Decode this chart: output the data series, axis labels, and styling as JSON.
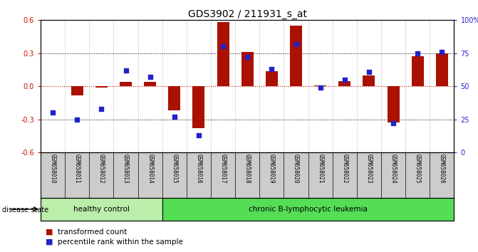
{
  "title": "GDS3902 / 211931_s_at",
  "samples": [
    "GSM658010",
    "GSM658011",
    "GSM658012",
    "GSM658013",
    "GSM658014",
    "GSM658015",
    "GSM658016",
    "GSM658017",
    "GSM658018",
    "GSM658019",
    "GSM658020",
    "GSM658021",
    "GSM658022",
    "GSM658023",
    "GSM658024",
    "GSM658025",
    "GSM658026"
  ],
  "transformed_count": [
    0.0,
    -0.08,
    -0.01,
    0.04,
    0.04,
    -0.22,
    -0.38,
    0.58,
    0.31,
    0.14,
    0.55,
    0.01,
    0.05,
    0.1,
    -0.33,
    0.27,
    0.3
  ],
  "percentile_rank": [
    30,
    25,
    33,
    62,
    57,
    27,
    13,
    80,
    72,
    63,
    82,
    49,
    55,
    61,
    22,
    75,
    76
  ],
  "bar_color": "#aa1100",
  "dot_color": "#2222cc",
  "ylim_left": [
    -0.6,
    0.6
  ],
  "ylim_right": [
    0,
    100
  ],
  "yticks_left": [
    -0.6,
    -0.3,
    0.0,
    0.3,
    0.6
  ],
  "yticks_right": [
    0,
    25,
    50,
    75,
    100
  ],
  "ytick_labels_right": [
    "0",
    "25",
    "50",
    "75",
    "100%"
  ],
  "dotted_lines": [
    -0.3,
    0.3
  ],
  "zero_line_y": 0.0,
  "group1_label": "healthy control",
  "group2_label": "chronic B-lymphocytic leukemia",
  "group1_count": 5,
  "group2_count": 12,
  "disease_state_label": "disease state",
  "legend1_label": "transformed count",
  "legend2_label": "percentile rank within the sample",
  "bg_color_group1": "#bbeeaa",
  "bg_color_group2": "#55dd55",
  "sample_bg_color": "#cccccc",
  "plot_bg_color": "#ffffff",
  "bar_color_red": "#cc1100",
  "tick_color_left": "#cc1100",
  "tick_color_right": "#2222cc",
  "title_fontsize": 10,
  "tick_fontsize": 7,
  "label_fontsize": 8
}
